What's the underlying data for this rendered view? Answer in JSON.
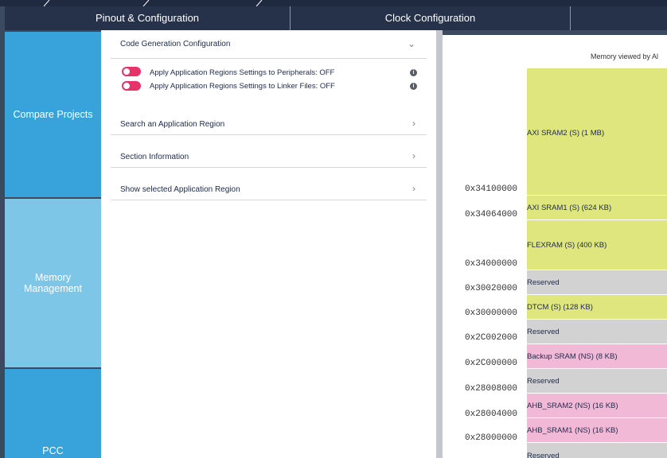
{
  "tabs": [
    "Pinout & Configuration",
    "Clock Configuration"
  ],
  "sidebar": [
    "Compare Projects",
    "Memory Management",
    "PCC"
  ],
  "panel": {
    "sections": [
      "Code Generation Configuration",
      "Search an Application Region",
      "Section Information",
      "Show selected Application Region"
    ],
    "toggles": [
      "Apply Application Regions Settings to Peripherals: OFF",
      "Apply Application Regions Settings to Linker Files: OFF"
    ]
  },
  "memory_map": {
    "title": "Memory viewed by Al",
    "regions": [
      "AXI SRAM2 (S) (1 MB)",
      "AXI SRAM1 (S) (624 KB)",
      "FLEXRAM (S) (400 KB)",
      "Reserved",
      "DTCM (S) (128 KB)",
      "Reserved",
      "Backup SRAM (NS) (8 KB)",
      "Reserved",
      "AHB_SRAM2 (NS) (16 KB)",
      "AHB_SRAM1 (NS) (16 KB)",
      "Reserved"
    ],
    "addresses": [
      "0x34100000",
      "0x34064000",
      "0x34000000",
      "0x30020000",
      "0x30000000",
      "0x2C002000",
      "0x2C000000",
      "0x28008000",
      "0x28004000",
      "0x28000000"
    ]
  }
}
